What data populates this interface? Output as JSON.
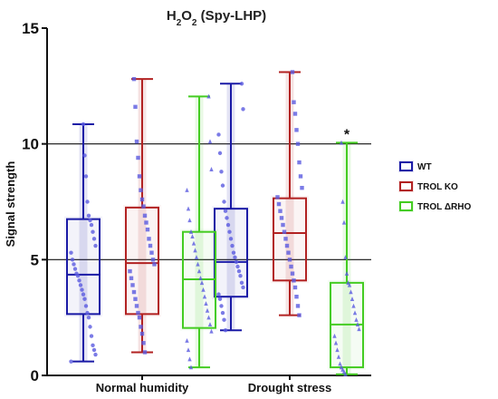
{
  "chart_data": {
    "type": "box",
    "title": "H",
    "title_sub_1": "2",
    "title_mid": "O",
    "title_sub_2": "2",
    "title_tail": " (Spy-LHP)",
    "ylabel": "Signal strength",
    "xlabel": "",
    "ylim": [
      0,
      15
    ],
    "yticks": [
      "0",
      "5",
      "10",
      "15"
    ],
    "reference_lines": [
      5,
      10
    ],
    "categories": [
      "Normal humidity",
      "Drought stress"
    ],
    "legend_position": "right",
    "series": [
      {
        "name": "WT",
        "color": "#1a1aa6",
        "marker": "circle",
        "boxes": [
          {
            "min": 0.6,
            "q1": 2.65,
            "median": 4.35,
            "q3": 6.75,
            "max": 10.85,
            "points": [
              0.6,
              0.9,
              1.1,
              1.3,
              1.7,
              2.1,
              2.5,
              2.7,
              3.0,
              3.3,
              3.5,
              3.7,
              3.9,
              4.1,
              4.3,
              4.4,
              4.6,
              4.8,
              5.0,
              5.3,
              5.6,
              5.9,
              6.2,
              6.5,
              6.7,
              6.9,
              7.5,
              8.6,
              9.5,
              10.85
            ]
          },
          {
            "min": 1.95,
            "q1": 3.4,
            "median": 4.9,
            "q3": 7.2,
            "max": 12.6,
            "points": [
              1.95,
              2.4,
              2.7,
              3.0,
              3.3,
              3.5,
              3.8,
              4.0,
              4.3,
              4.5,
              4.7,
              4.9,
              5.1,
              5.3,
              5.6,
              5.9,
              6.2,
              6.5,
              6.8,
              7.1,
              7.5,
              8.2,
              8.8,
              9.6,
              10.4,
              11.5,
              12.6
            ]
          }
        ]
      },
      {
        "name": "TROL KO",
        "color": "#b22222",
        "marker": "square",
        "boxes": [
          {
            "min": 1.0,
            "q1": 2.65,
            "median": 4.85,
            "q3": 7.25,
            "max": 12.8,
            "points": [
              1.0,
              1.4,
              1.8,
              2.1,
              2.5,
              2.7,
              3.0,
              3.3,
              3.6,
              3.9,
              4.2,
              4.5,
              4.8,
              5.0,
              5.3,
              5.6,
              5.9,
              6.3,
              6.6,
              6.9,
              7.3,
              7.6,
              8.0,
              8.6,
              9.4,
              10.1,
              11.6,
              12.8
            ]
          },
          {
            "min": 2.6,
            "q1": 4.1,
            "median": 6.15,
            "q3": 7.65,
            "max": 13.1,
            "points": [
              2.6,
              3.0,
              3.4,
              3.8,
              4.1,
              4.4,
              4.7,
              5.0,
              5.3,
              5.6,
              5.9,
              6.2,
              6.5,
              6.8,
              7.1,
              7.4,
              7.7,
              8.1,
              8.6,
              9.2,
              10.0,
              10.6,
              11.3,
              11.8,
              13.1
            ]
          }
        ]
      },
      {
        "name": "TROL ΔRHO",
        "color": "#44cc22",
        "marker": "triangle",
        "boxes": [
          {
            "min": 0.35,
            "q1": 2.05,
            "median": 4.15,
            "q3": 6.2,
            "max": 12.05,
            "points": [
              0.35,
              0.7,
              1.1,
              1.5,
              1.9,
              2.2,
              2.5,
              2.8,
              3.1,
              3.4,
              3.7,
              4.0,
              4.2,
              4.5,
              4.8,
              5.1,
              5.4,
              5.7,
              6.0,
              6.2,
              6.7,
              7.2,
              8.0,
              8.9,
              10.1,
              12.05
            ]
          },
          {
            "min": 0.05,
            "q1": 0.35,
            "median": 2.2,
            "q3": 4.0,
            "max": 10.05,
            "points": [
              0.05,
              0.15,
              0.25,
              0.35,
              0.5,
              0.8,
              1.1,
              1.4,
              1.7,
              2.0,
              2.2,
              2.4,
              2.7,
              3.0,
              3.3,
              3.6,
              3.9,
              4.0,
              4.4,
              5.1,
              6.6,
              7.5,
              10.05
            ]
          }
        ],
        "annotation": "*"
      }
    ]
  }
}
